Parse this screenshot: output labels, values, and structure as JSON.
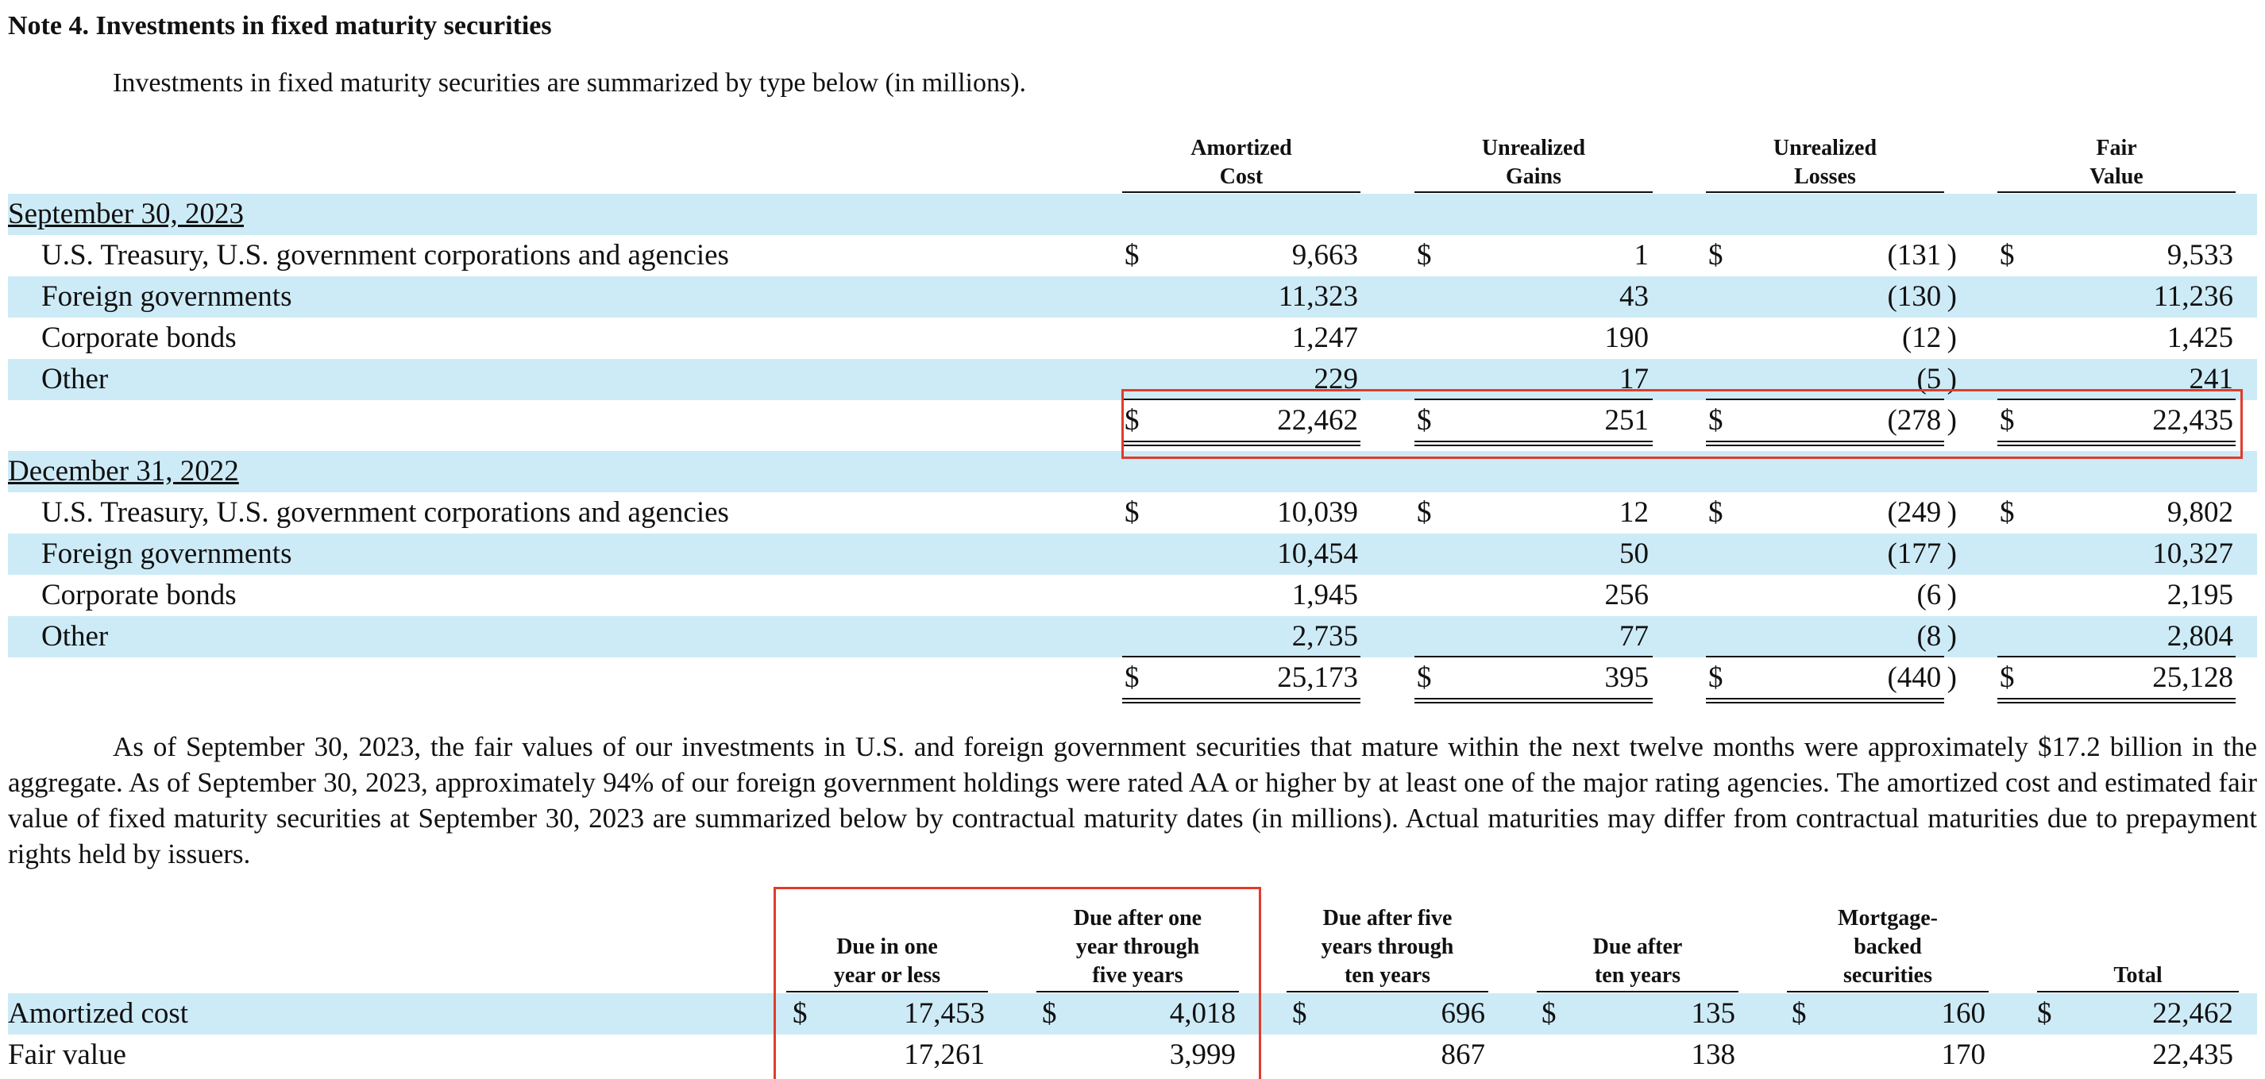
{
  "note_title": "Note 4. Investments in fixed maturity securities",
  "intro": "Investments in fixed maturity securities are summarized by type below (in millions).",
  "table1": {
    "headers": [
      {
        "line1": "Amortized",
        "line2": "Cost"
      },
      {
        "line1": "Unrealized",
        "line2": "Gains"
      },
      {
        "line1": "Unrealized",
        "line2": "Losses"
      },
      {
        "line1": "Fair",
        "line2": "Value"
      }
    ],
    "sections": [
      {
        "title": "September 30, 2023",
        "rows": [
          {
            "label": "U.S. Treasury, U.S. government corporations and agencies",
            "dollar": "$",
            "values": [
              "9,663",
              "1",
              "(131 )",
              "9,533"
            ]
          },
          {
            "label": "Foreign governments",
            "dollar": "",
            "values": [
              "11,323",
              "43",
              "(130 )",
              "11,236"
            ]
          },
          {
            "label": "Corporate bonds",
            "dollar": "",
            "values": [
              "1,247",
              "190",
              "(12 )",
              "1,425"
            ]
          },
          {
            "label": "Other",
            "dollar": "",
            "values": [
              "229",
              "17",
              "(5 )",
              "241"
            ]
          }
        ],
        "total": {
          "dollar": "$",
          "values": [
            "22,462",
            "251",
            "(278 )",
            "22,435"
          ]
        }
      },
      {
        "title": "December 31, 2022",
        "rows": [
          {
            "label": "U.S. Treasury, U.S. government corporations and agencies",
            "dollar": "$",
            "values": [
              "10,039",
              "12",
              "(249 )",
              "9,802"
            ]
          },
          {
            "label": "Foreign governments",
            "dollar": "",
            "values": [
              "10,454",
              "50",
              "(177 )",
              "10,327"
            ]
          },
          {
            "label": "Corporate bonds",
            "dollar": "",
            "values": [
              "1,945",
              "256",
              "(6 )",
              "2,195"
            ]
          },
          {
            "label": "Other",
            "dollar": "",
            "values": [
              "2,735",
              "77",
              "(8 )",
              "2,804"
            ]
          }
        ],
        "total": {
          "dollar": "$",
          "values": [
            "25,173",
            "395",
            "(440 )",
            "25,128"
          ]
        }
      }
    ]
  },
  "paragraph": "As of September 30, 2023, the fair values of our investments in U.S. and foreign government securities that mature within the next twelve months were approximately $17.2 billion in the aggregate. As of September 30, 2023, approximately 94% of our foreign government holdings were rated AA or higher by at least one of the major rating agencies. The amortized cost and estimated fair value of fixed maturity securities at September 30, 2023 are summarized below by contractual maturity dates (in millions). Actual maturities may differ from contractual maturities due to prepayment rights held by issuers.",
  "table2": {
    "headers": [
      [
        "Due in one",
        "year or less"
      ],
      [
        "Due after one",
        "year through",
        "five years"
      ],
      [
        "Due after five",
        "years through",
        "ten years"
      ],
      [
        "Due after",
        "ten years"
      ],
      [
        "Mortgage-",
        "backed",
        "securities"
      ],
      [
        "Total"
      ]
    ],
    "rows": [
      {
        "label": "Amortized cost",
        "dollar": "$",
        "values": [
          "17,453",
          "4,018",
          "696",
          "135",
          "160",
          "22,462"
        ]
      },
      {
        "label": "Fair value",
        "dollar": "",
        "values": [
          "17,261",
          "3,999",
          "867",
          "138",
          "170",
          "22,435"
        ]
      }
    ]
  },
  "colors": {
    "band": "#cdebf7",
    "highlight": "#e03c2c"
  }
}
